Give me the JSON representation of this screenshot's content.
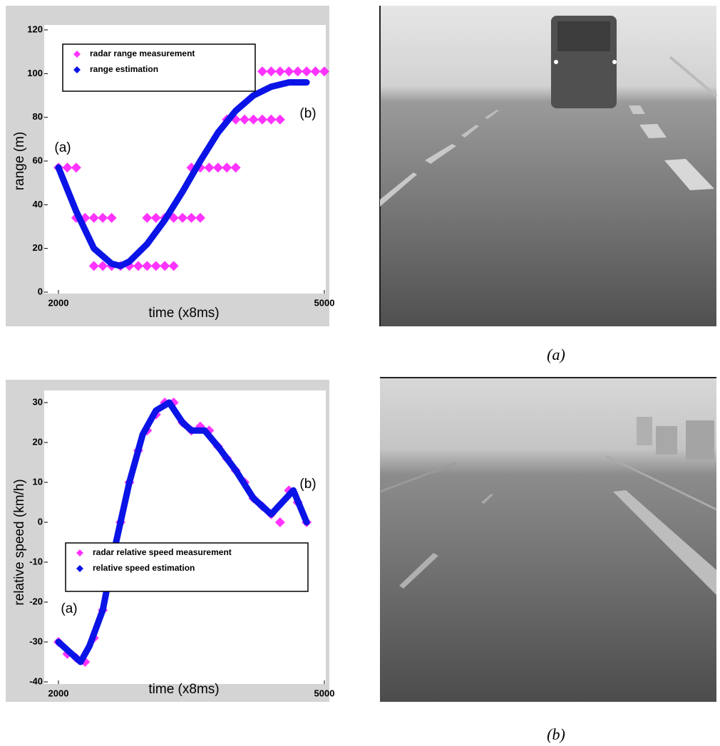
{
  "chart_data": [
    {
      "type": "line",
      "xlabel": "time (x8ms)",
      "ylabel": "range (m)",
      "xlim": [
        2000,
        5000
      ],
      "xticks": [
        2000,
        5000
      ],
      "ylim": [
        0,
        120
      ],
      "yticks": [
        0,
        20,
        40,
        60,
        80,
        100,
        120
      ],
      "annotations": [
        "(a)",
        "(b)"
      ],
      "series": [
        {
          "name": "radar range measurement",
          "color": "#ff33ff",
          "marker": "diamond",
          "x": [
            2000,
            2100,
            2200,
            2200,
            2300,
            2400,
            2500,
            2600,
            2400,
            2500,
            2600,
            2700,
            2800,
            2900,
            3000,
            3100,
            3200,
            3300,
            3000,
            3100,
            3200,
            3300,
            3400,
            3500,
            3600,
            3500,
            3600,
            3700,
            3800,
            3900,
            4000,
            3900,
            4000,
            4100,
            4200,
            4300,
            4400,
            4500,
            4300,
            4400,
            4500,
            4600,
            4700,
            4800,
            4900,
            5000
          ],
          "values": [
            57,
            57,
            57,
            34,
            34,
            34,
            34,
            34,
            12,
            12,
            12,
            12,
            12,
            12,
            12,
            12,
            12,
            12,
            34,
            34,
            34,
            34,
            34,
            34,
            34,
            57,
            57,
            57,
            57,
            57,
            57,
            79,
            79,
            79,
            79,
            79,
            79,
            79,
            101,
            101,
            101,
            101,
            101,
            101,
            101,
            101
          ]
        },
        {
          "name": "range estimation",
          "color": "#0a14e6",
          "marker": "line",
          "x": [
            2000,
            2200,
            2400,
            2600,
            2700,
            2800,
            3000,
            3200,
            3400,
            3600,
            3800,
            4000,
            4200,
            4400,
            4600,
            4800
          ],
          "values": [
            57,
            37,
            20,
            13,
            12,
            14,
            22,
            33,
            46,
            60,
            73,
            83,
            90,
            94,
            96,
            96
          ]
        }
      ]
    },
    {
      "type": "line",
      "xlabel": "time (x8ms)",
      "ylabel": "relative speed (km/h)",
      "xlim": [
        2000,
        5000
      ],
      "xticks": [
        2000,
        5000
      ],
      "ylim": [
        -40,
        30
      ],
      "yticks": [
        -40,
        -30,
        -20,
        -10,
        0,
        10,
        20,
        30
      ],
      "annotations": [
        "(a)",
        "(b)"
      ],
      "series": [
        {
          "name": "radar relative speed measurement",
          "color": "#ff33ff",
          "marker": "diamond",
          "x": [
            2000,
            2100,
            2200,
            2300,
            2400,
            2500,
            2600,
            2700,
            2800,
            2900,
            3000,
            3100,
            3200,
            3300,
            3400,
            3500,
            3600,
            3700,
            3800,
            3900,
            4000,
            4100,
            4200,
            4300,
            4400,
            4500,
            4600,
            4700,
            4800
          ],
          "values": [
            -30,
            -33,
            -34,
            -35,
            -29,
            -22,
            -11,
            0,
            10,
            18,
            23,
            27,
            30,
            30,
            25,
            23,
            24,
            23,
            19,
            16,
            13,
            10,
            6,
            4,
            2,
            0,
            8,
            5,
            0
          ]
        },
        {
          "name": "relative speed estimation",
          "color": "#0a14e6",
          "marker": "line",
          "x": [
            2000,
            2150,
            2250,
            2350,
            2500,
            2650,
            2800,
            2950,
            3100,
            3250,
            3400,
            3500,
            3650,
            3800,
            4000,
            4200,
            4400,
            4650,
            4800
          ],
          "values": [
            -30,
            -33,
            -35,
            -31,
            -22,
            -5,
            10,
            22,
            28,
            30,
            25,
            23,
            23,
            19,
            13,
            6,
            2,
            8,
            0
          ]
        }
      ]
    }
  ],
  "captions": [
    "(a)",
    "(b)"
  ]
}
